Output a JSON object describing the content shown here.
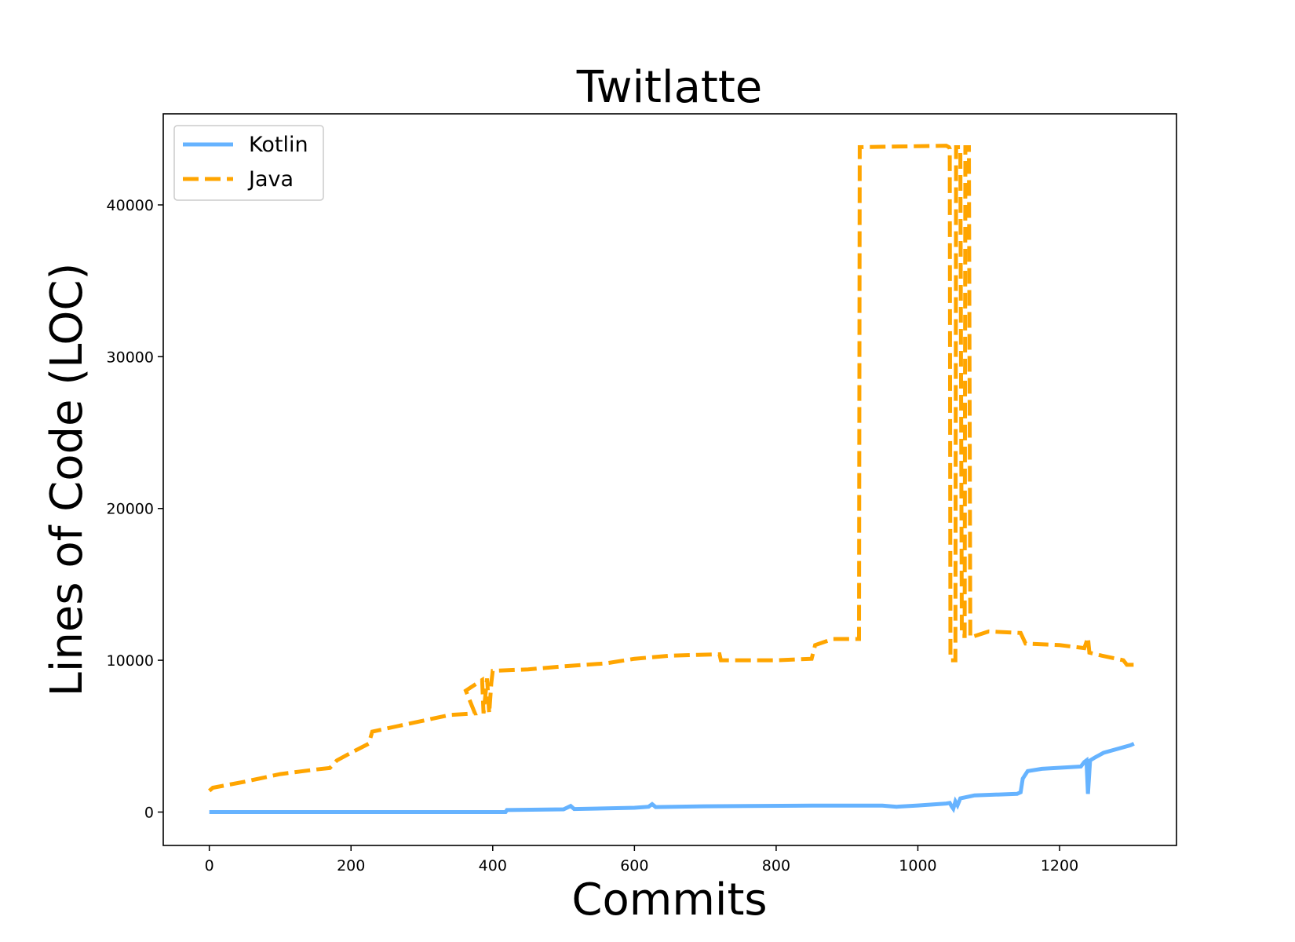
{
  "chart_data": {
    "type": "line",
    "title": "Twitlatte",
    "xlabel": "Commits",
    "ylabel": "Lines of Code (LOC)",
    "xlim": [
      -65,
      1365
    ],
    "ylim": [
      -2200,
      46000
    ],
    "xticks": [
      0,
      200,
      400,
      600,
      800,
      1000,
      1200
    ],
    "yticks": [
      0,
      10000,
      20000,
      30000,
      40000
    ],
    "legend_position": "top-left",
    "grid": false,
    "series": [
      {
        "name": "Kotlin",
        "style": "solid",
        "color": "#66b3ff",
        "points": [
          [
            0,
            0
          ],
          [
            400,
            0
          ],
          [
            418,
            0
          ],
          [
            420,
            130
          ],
          [
            500,
            180
          ],
          [
            510,
            400
          ],
          [
            515,
            200
          ],
          [
            600,
            280
          ],
          [
            620,
            350
          ],
          [
            625,
            520
          ],
          [
            630,
            330
          ],
          [
            700,
            380
          ],
          [
            760,
            400
          ],
          [
            850,
            420
          ],
          [
            950,
            420
          ],
          [
            970,
            350
          ],
          [
            1000,
            430
          ],
          [
            1040,
            560
          ],
          [
            1045,
            600
          ],
          [
            1048,
            350
          ],
          [
            1050,
            220
          ],
          [
            1053,
            700
          ],
          [
            1056,
            450
          ],
          [
            1060,
            900
          ],
          [
            1080,
            1100
          ],
          [
            1140,
            1200
          ],
          [
            1145,
            1300
          ],
          [
            1148,
            2200
          ],
          [
            1155,
            2700
          ],
          [
            1175,
            2850
          ],
          [
            1230,
            3000
          ],
          [
            1235,
            3300
          ],
          [
            1238,
            3400
          ],
          [
            1240,
            1200
          ],
          [
            1243,
            3400
          ],
          [
            1250,
            3600
          ],
          [
            1262,
            3900
          ],
          [
            1300,
            4400
          ],
          [
            1305,
            4500
          ]
        ]
      },
      {
        "name": "Java",
        "style": "dashed",
        "color": "#ffa500",
        "points": [
          [
            0,
            1400
          ],
          [
            5,
            1600
          ],
          [
            50,
            2000
          ],
          [
            100,
            2500
          ],
          [
            150,
            2800
          ],
          [
            170,
            2900
          ],
          [
            180,
            3400
          ],
          [
            200,
            3900
          ],
          [
            225,
            4500
          ],
          [
            230,
            5300
          ],
          [
            270,
            5700
          ],
          [
            300,
            6000
          ],
          [
            340,
            6400
          ],
          [
            375,
            6500
          ],
          [
            362,
            8000
          ],
          [
            385,
            8700
          ],
          [
            387,
            6500
          ],
          [
            392,
            8800
          ],
          [
            395,
            6500
          ],
          [
            398,
            8500
          ],
          [
            400,
            9300
          ],
          [
            450,
            9400
          ],
          [
            500,
            9600
          ],
          [
            560,
            9800
          ],
          [
            600,
            10100
          ],
          [
            650,
            10300
          ],
          [
            720,
            10400
          ],
          [
            722,
            10000
          ],
          [
            800,
            10000
          ],
          [
            850,
            10100
          ],
          [
            855,
            11000
          ],
          [
            880,
            11400
          ],
          [
            917,
            11400
          ],
          [
            918,
            43800
          ],
          [
            1040,
            43900
          ],
          [
            1044,
            43800
          ],
          [
            1045,
            43700
          ],
          [
            1046,
            10000
          ],
          [
            1053,
            10000
          ],
          [
            1054,
            43800
          ],
          [
            1060,
            43800
          ],
          [
            1062,
            11600
          ],
          [
            1066,
            11600
          ],
          [
            1067,
            43800
          ],
          [
            1072,
            43800
          ],
          [
            1074,
            11500
          ],
          [
            1100,
            11900
          ],
          [
            1145,
            11800
          ],
          [
            1152,
            11100
          ],
          [
            1200,
            11000
          ],
          [
            1235,
            10800
          ],
          [
            1240,
            11500
          ],
          [
            1242,
            10500
          ],
          [
            1260,
            10300
          ],
          [
            1290,
            10000
          ],
          [
            1295,
            9700
          ],
          [
            1305,
            9700
          ]
        ]
      }
    ]
  }
}
